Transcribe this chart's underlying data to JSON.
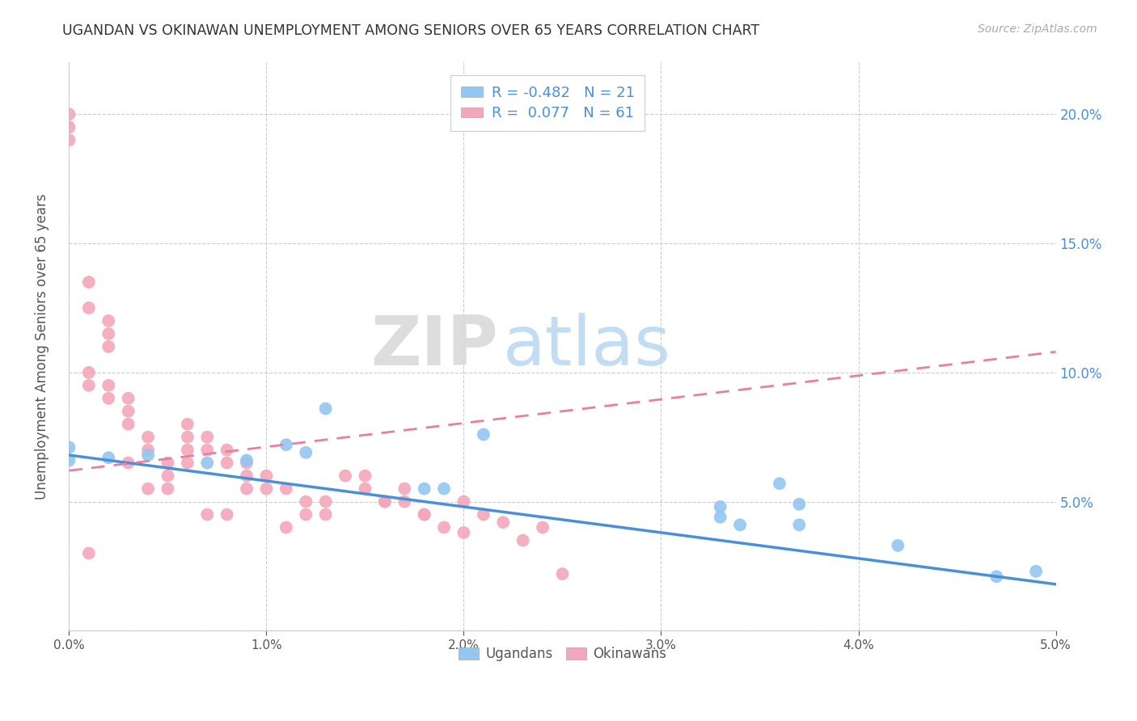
{
  "title": "UGANDAN VS OKINAWAN UNEMPLOYMENT AMONG SENIORS OVER 65 YEARS CORRELATION CHART",
  "source": "Source: ZipAtlas.com",
  "ylabel": "Unemployment Among Seniors over 65 years",
  "xlim": [
    0.0,
    0.05
  ],
  "ylim": [
    0.0,
    0.22
  ],
  "xticks": [
    0.0,
    0.01,
    0.02,
    0.03,
    0.04,
    0.05
  ],
  "yticks": [
    0.0,
    0.05,
    0.1,
    0.15,
    0.2
  ],
  "ytick_labels_right": [
    "",
    "5.0%",
    "10.0%",
    "15.0%",
    "20.0%"
  ],
  "xtick_labels": [
    "0.0%",
    "1.0%",
    "2.0%",
    "3.0%",
    "4.0%",
    "5.0%"
  ],
  "blue_R": -0.482,
  "blue_N": 21,
  "pink_R": 0.077,
  "pink_N": 61,
  "ugandan_color": "#93c6f0",
  "okinawan_color": "#f4a7bb",
  "ugandan_line_color": "#4a90d9",
  "okinawan_line_color": "#e87ea0",
  "watermark_zip": "ZIP",
  "watermark_atlas": "atlas",
  "legend_label_ugandan": "Ugandans",
  "legend_label_okinawan": "Okinawans",
  "blue_line_x": [
    0.0,
    0.05
  ],
  "blue_line_y": [
    0.068,
    0.018
  ],
  "pink_line_x": [
    0.0,
    0.05
  ],
  "pink_line_y": [
    0.062,
    0.108
  ],
  "ugandan_x": [
    0.0,
    0.0,
    0.002,
    0.004,
    0.007,
    0.009,
    0.011,
    0.012,
    0.013,
    0.018,
    0.019,
    0.021,
    0.033,
    0.033,
    0.034,
    0.036,
    0.037,
    0.037,
    0.042,
    0.047,
    0.049
  ],
  "ugandan_y": [
    0.066,
    0.071,
    0.067,
    0.068,
    0.065,
    0.066,
    0.072,
    0.069,
    0.086,
    0.055,
    0.055,
    0.076,
    0.048,
    0.044,
    0.041,
    0.057,
    0.041,
    0.049,
    0.033,
    0.021,
    0.023
  ],
  "okinawan_x": [
    0.0,
    0.0,
    0.0,
    0.001,
    0.001,
    0.001,
    0.001,
    0.001,
    0.002,
    0.002,
    0.002,
    0.002,
    0.002,
    0.003,
    0.003,
    0.003,
    0.003,
    0.004,
    0.004,
    0.004,
    0.005,
    0.005,
    0.005,
    0.006,
    0.006,
    0.006,
    0.006,
    0.007,
    0.007,
    0.007,
    0.008,
    0.008,
    0.008,
    0.009,
    0.009,
    0.009,
    0.01,
    0.01,
    0.011,
    0.011,
    0.012,
    0.012,
    0.013,
    0.013,
    0.014,
    0.015,
    0.015,
    0.016,
    0.016,
    0.017,
    0.017,
    0.018,
    0.018,
    0.019,
    0.02,
    0.02,
    0.021,
    0.022,
    0.023,
    0.024,
    0.025
  ],
  "okinawan_y": [
    0.2,
    0.195,
    0.19,
    0.135,
    0.125,
    0.1,
    0.095,
    0.03,
    0.12,
    0.115,
    0.11,
    0.095,
    0.09,
    0.09,
    0.085,
    0.08,
    0.065,
    0.075,
    0.07,
    0.055,
    0.065,
    0.06,
    0.055,
    0.08,
    0.075,
    0.07,
    0.065,
    0.075,
    0.07,
    0.045,
    0.07,
    0.065,
    0.045,
    0.065,
    0.06,
    0.055,
    0.06,
    0.055,
    0.055,
    0.04,
    0.05,
    0.045,
    0.05,
    0.045,
    0.06,
    0.06,
    0.055,
    0.05,
    0.05,
    0.055,
    0.05,
    0.045,
    0.045,
    0.04,
    0.05,
    0.038,
    0.045,
    0.042,
    0.035,
    0.04,
    0.022
  ]
}
